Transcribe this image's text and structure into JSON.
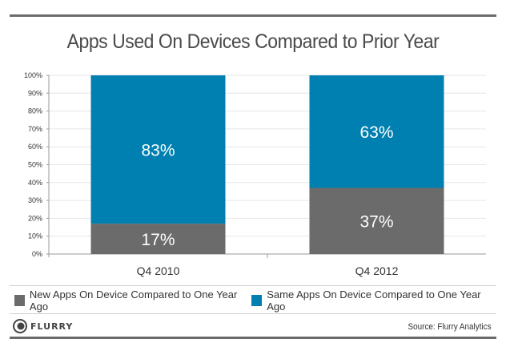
{
  "chart_data": {
    "type": "bar",
    "stacked": true,
    "title": "Apps Used On Devices Compared to Prior Year",
    "xlabel": "",
    "ylabel": "",
    "categories": [
      "Q4 2010",
      "Q4 2012"
    ],
    "series": [
      {
        "name": "New Apps On Device Compared to One Year Ago",
        "values": [
          17,
          37
        ],
        "labels": [
          "17%",
          "37%"
        ],
        "color": "#6b6b6b"
      },
      {
        "name": "Same Apps On Device Compared to One Year Ago",
        "values": [
          83,
          63
        ],
        "labels": [
          "83%",
          "63%"
        ],
        "color": "#0080b0"
      }
    ],
    "ylim": [
      0,
      100
    ],
    "yticks": [
      "0%",
      "10%",
      "20%",
      "30%",
      "40%",
      "50%",
      "60%",
      "70%",
      "80%",
      "90%",
      "100%"
    ],
    "grid": true,
    "legend_position": "bottom"
  },
  "footer": {
    "logo_text": "FLURRY",
    "source": "Source: Flurry Analytics"
  }
}
